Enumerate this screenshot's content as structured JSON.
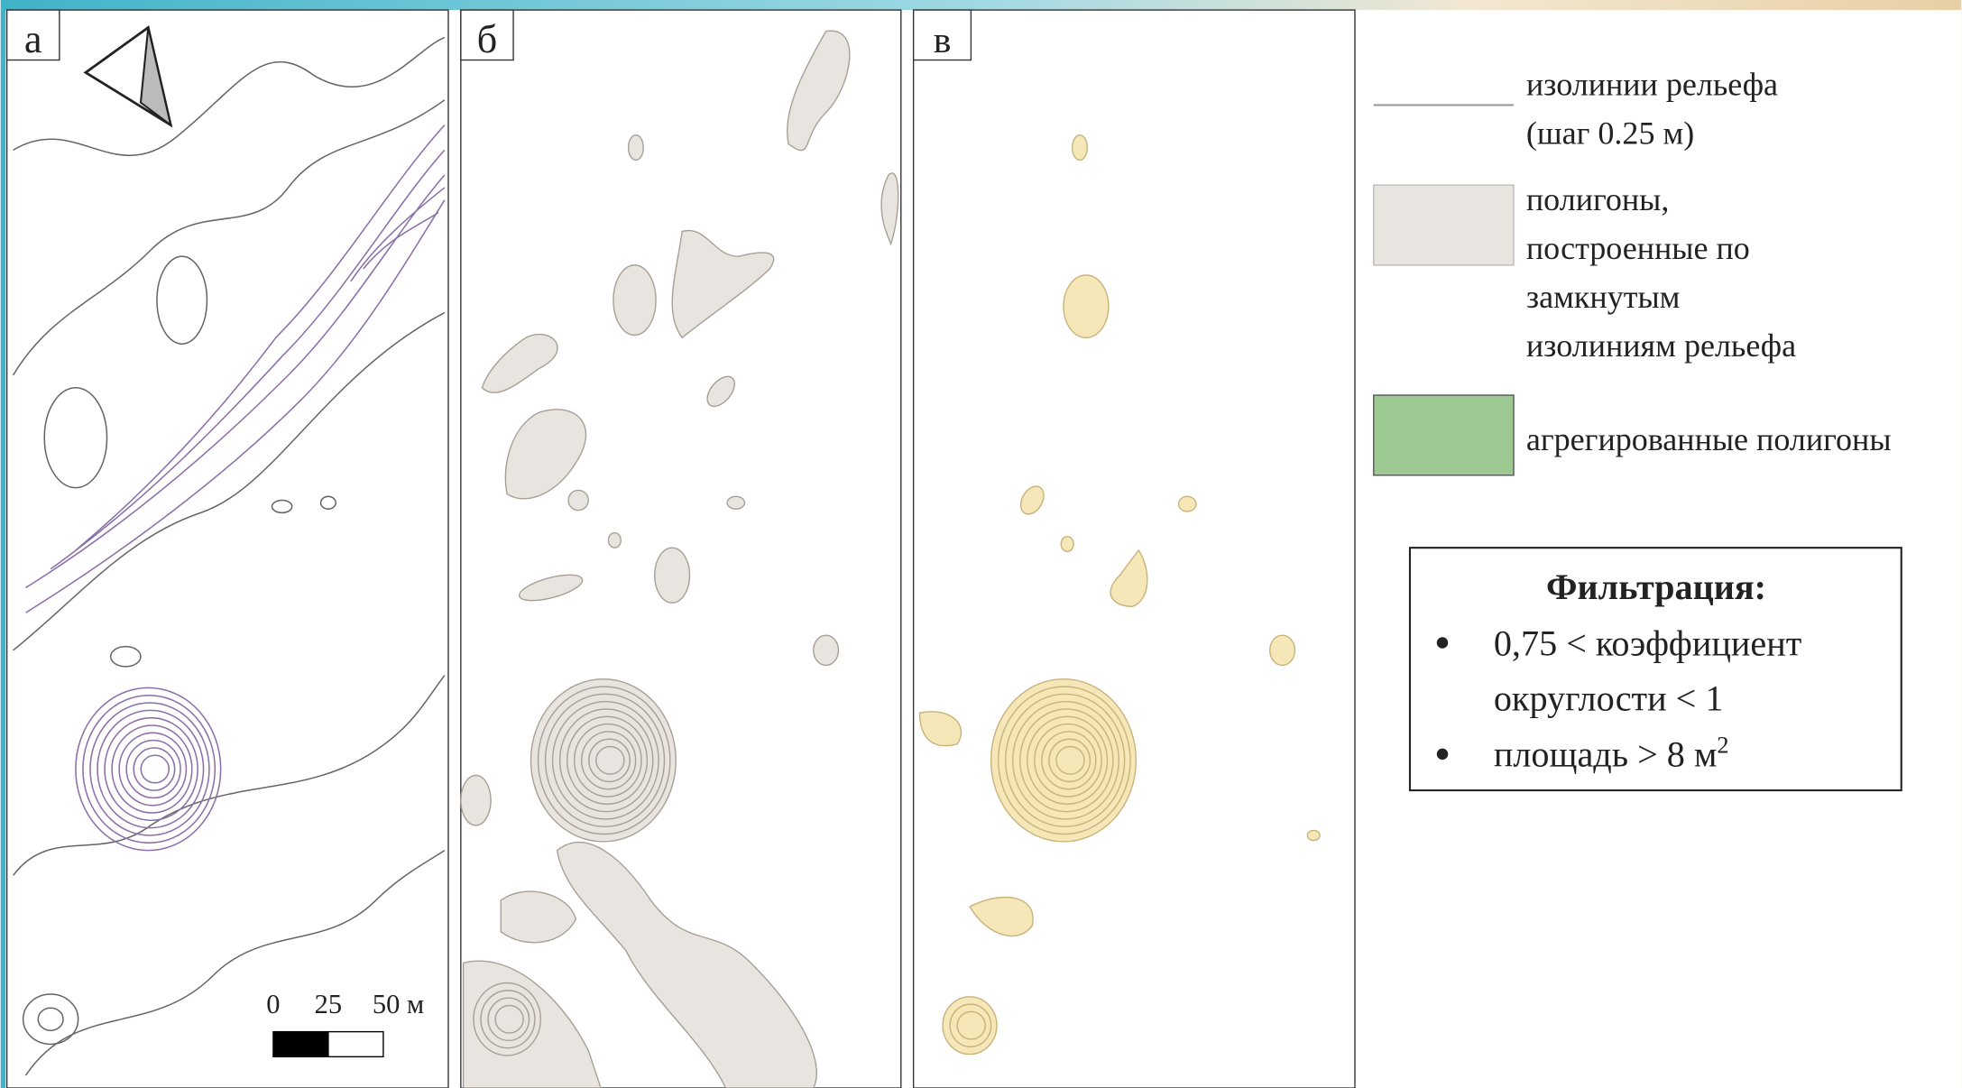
{
  "panels": [
    {
      "label": "а"
    },
    {
      "label": "б"
    },
    {
      "label": "в"
    }
  ],
  "scale_bar": {
    "labels": [
      "0",
      "25",
      "50 м"
    ]
  },
  "legend": {
    "items": [
      {
        "lines": [
          "изолинии рельефа",
          "(шаг 0.25 м)"
        ]
      },
      {
        "lines": [
          "полигоны,",
          "построенные по",
          "замкнутым",
          "изолиниям рельефа"
        ]
      },
      {
        "lines": [
          "агрегированные полигоны"
        ]
      }
    ]
  },
  "filter_box": {
    "title": "Фильтрация:",
    "bullets": [
      {
        "lines": [
          "0,75 < коэффициент",
          "округлости < 1"
        ]
      },
      {
        "lines": [
          "площадь > 8 м"
        ],
        "superscript": "2"
      }
    ]
  }
}
